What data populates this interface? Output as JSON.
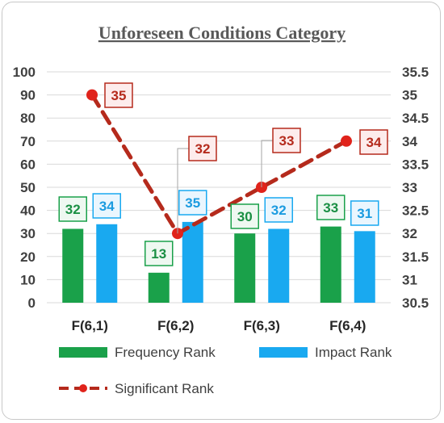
{
  "chart_data": {
    "type": "bar",
    "title": "Unforeseen Conditions Category",
    "categories": [
      "F(6,1)",
      "F(6,2)",
      "F(6,3)",
      "F(6,4)"
    ],
    "series": [
      {
        "name": "Frequency Rank",
        "kind": "bar",
        "axis": "left",
        "color": "#1aa14a",
        "values": [
          32,
          13,
          30,
          33
        ]
      },
      {
        "name": "Impact Rank",
        "kind": "bar",
        "axis": "left",
        "color": "#19a9f0",
        "values": [
          34,
          35,
          32,
          31
        ]
      },
      {
        "name": "Significant Rank",
        "kind": "line",
        "axis": "right",
        "color": "#b52a1c",
        "marker_color": "#e0231b",
        "line_style": "dashed",
        "values": [
          35,
          32,
          33,
          34
        ]
      }
    ],
    "y_left": {
      "ylim": [
        0,
        100
      ],
      "ticks": [
        "0",
        "10",
        "20",
        "30",
        "40",
        "50",
        "60",
        "70",
        "80",
        "90",
        "100"
      ]
    },
    "y_right": {
      "ylim": [
        30.5,
        35.5
      ],
      "ticks": [
        "30.5",
        "31",
        "31.5",
        "32",
        "32.5",
        "33",
        "33.5",
        "34",
        "34.5",
        "35",
        "35.5"
      ]
    },
    "grid": true,
    "legend_position": "bottom"
  }
}
